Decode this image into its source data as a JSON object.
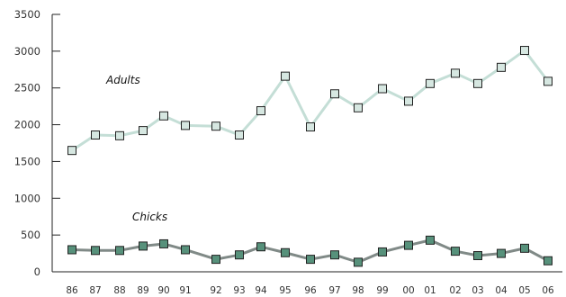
{
  "chart_data": {
    "type": "line",
    "title": "",
    "xlabel": "",
    "ylabel": "",
    "ylim": [
      0,
      3500
    ],
    "yticks": [
      0,
      500,
      1000,
      1500,
      2000,
      2500,
      3000,
      3500
    ],
    "x": [
      "86",
      "87",
      "88",
      "89",
      "90",
      "91",
      "92",
      "93",
      "94",
      "95",
      "96",
      "97",
      "98",
      "99",
      "00",
      "01",
      "02",
      "03",
      "04",
      "05",
      "06"
    ],
    "grid": false,
    "legend": "none",
    "series": [
      {
        "name": "Adults",
        "values": [
          1650,
          1860,
          1850,
          1920,
          2120,
          1990,
          1980,
          1860,
          2190,
          2660,
          1970,
          2420,
          2230,
          2490,
          2320,
          2560,
          2700,
          2560,
          2780,
          3010,
          2590
        ],
        "line_color": "#c4ded6",
        "marker_fill": "#d6e7e1",
        "marker_stroke": "#222222"
      },
      {
        "name": "Chicks",
        "values": [
          300,
          290,
          290,
          350,
          380,
          300,
          170,
          230,
          340,
          260,
          170,
          230,
          130,
          270,
          360,
          430,
          280,
          220,
          250,
          320,
          150
        ],
        "line_color": "#808a87",
        "marker_fill": "#57917b",
        "marker_stroke": "#222222"
      }
    ]
  }
}
